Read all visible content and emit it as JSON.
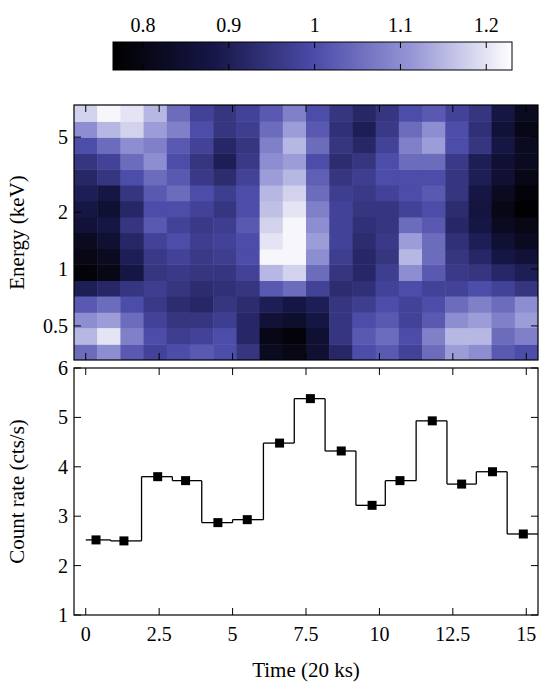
{
  "chart_data": [
    {
      "type": "heatmap",
      "y_label": "Energy (keV)",
      "log": "y",
      "tick_labels": "y",
      "xlim": [
        -0.4,
        15.4
      ],
      "xticks": [
        0,
        2.5,
        5,
        7.5,
        10,
        12.5,
        15
      ],
      "ylim": [
        0.33,
        7.4
      ],
      "yticks": [
        0.5,
        1,
        2,
        5
      ],
      "x_edges": [
        -0.4,
        0.39,
        1.18,
        1.97,
        2.76,
        3.55,
        4.34,
        5.13,
        5.92,
        6.71,
        7.5,
        8.29,
        9.08,
        9.87,
        10.66,
        11.45,
        12.24,
        13.03,
        13.82,
        14.61,
        15.4
      ],
      "y_edges": [
        0.33,
        0.4,
        0.49,
        0.59,
        0.72,
        0.87,
        1.06,
        1.28,
        1.56,
        1.89,
        2.3,
        2.79,
        3.38,
        4.11,
        4.99,
        6.06,
        7.4
      ],
      "cells": [
        [
          1.05,
          1.1,
          1.02,
          0.98,
          1.0,
          1.02,
          1.0,
          0.95,
          0.82,
          0.8,
          0.85,
          0.92,
          1.0,
          1.02,
          0.98,
          1.05,
          1.12,
          1.1,
          1.02,
          1.0
        ],
        [
          1.15,
          1.2,
          1.08,
          1.0,
          0.97,
          0.98,
          1.0,
          0.92,
          0.8,
          0.78,
          0.85,
          0.95,
          1.02,
          1.05,
          1.0,
          1.08,
          1.15,
          1.15,
          1.05,
          1.08
        ],
        [
          1.1,
          1.12,
          1.05,
          0.98,
          0.95,
          0.95,
          0.97,
          0.92,
          0.86,
          0.84,
          0.88,
          0.95,
          1.0,
          1.02,
          0.98,
          1.02,
          1.1,
          1.12,
          1.08,
          1.12
        ],
        [
          1.02,
          1.05,
          1.0,
          0.96,
          0.93,
          0.92,
          0.95,
          0.93,
          0.9,
          0.88,
          0.9,
          0.95,
          0.97,
          1.0,
          0.98,
          1.0,
          1.05,
          1.08,
          1.05,
          1.1
        ],
        [
          0.9,
          0.92,
          0.95,
          0.97,
          0.95,
          0.93,
          0.94,
          0.95,
          1.02,
          1.05,
          0.98,
          0.93,
          0.94,
          0.98,
          1.0,
          0.98,
          0.98,
          1.0,
          0.98,
          0.95
        ],
        [
          0.78,
          0.8,
          0.88,
          0.95,
          0.96,
          0.95,
          0.95,
          0.98,
          1.15,
          1.18,
          1.05,
          0.95,
          0.92,
          0.97,
          1.1,
          1.02,
          0.96,
          0.95,
          0.92,
          0.9
        ],
        [
          0.8,
          0.82,
          0.9,
          0.96,
          0.98,
          0.96,
          0.97,
          1.0,
          1.22,
          1.22,
          1.1,
          0.97,
          0.92,
          0.95,
          1.15,
          1.05,
          0.95,
          0.92,
          0.88,
          0.86
        ],
        [
          0.82,
          0.85,
          0.92,
          0.98,
          1.0,
          0.97,
          0.98,
          1.0,
          1.2,
          1.22,
          1.12,
          0.98,
          0.93,
          0.96,
          1.12,
          1.05,
          0.94,
          0.9,
          0.85,
          0.82
        ],
        [
          0.86,
          0.88,
          0.95,
          1.02,
          0.98,
          0.96,
          0.97,
          1.02,
          1.18,
          1.22,
          1.1,
          0.98,
          0.94,
          0.95,
          1.05,
          1.02,
          0.92,
          0.88,
          0.82,
          0.8
        ],
        [
          0.88,
          0.85,
          0.92,
          1.0,
          1.0,
          0.98,
          0.95,
          1.0,
          1.16,
          1.2,
          1.08,
          0.98,
          0.95,
          0.95,
          0.98,
          1.0,
          0.93,
          0.87,
          0.8,
          0.77
        ],
        [
          0.9,
          0.88,
          0.95,
          1.02,
          1.05,
          1.0,
          0.97,
          1.0,
          1.15,
          1.18,
          1.05,
          0.97,
          0.96,
          0.98,
          1.0,
          1.02,
          0.95,
          0.88,
          0.82,
          0.78
        ],
        [
          0.92,
          0.95,
          1.0,
          1.05,
          1.02,
          0.96,
          0.93,
          0.98,
          1.12,
          1.15,
          1.03,
          0.95,
          0.97,
          1.0,
          1.0,
          1.0,
          0.95,
          0.9,
          0.85,
          0.8
        ],
        [
          0.95,
          0.98,
          1.05,
          1.1,
          1.0,
          0.95,
          0.9,
          0.96,
          1.1,
          1.12,
          1.0,
          0.93,
          0.95,
          1.0,
          1.05,
          1.05,
          0.96,
          0.9,
          0.85,
          0.82
        ],
        [
          1.0,
          1.05,
          1.1,
          1.08,
          1.02,
          0.98,
          0.92,
          0.95,
          1.08,
          1.15,
          1.05,
          0.95,
          0.92,
          0.98,
          1.08,
          1.12,
          1.0,
          0.95,
          0.88,
          0.82
        ],
        [
          1.1,
          1.15,
          1.18,
          1.12,
          1.08,
          1.0,
          0.95,
          0.97,
          1.05,
          1.12,
          1.02,
          0.94,
          0.9,
          0.96,
          1.05,
          1.1,
          1.0,
          0.94,
          0.86,
          0.8
        ],
        [
          1.18,
          1.22,
          1.2,
          1.15,
          1.05,
          0.98,
          0.95,
          0.98,
          1.02,
          1.08,
          1.0,
          0.95,
          0.92,
          0.95,
          1.0,
          1.02,
          0.98,
          0.95,
          0.88,
          0.82
        ]
      ],
      "colorbar_range": [
        0.765,
        1.23
      ],
      "colorbar_ticks": [
        0.8,
        0.9,
        1,
        1.1,
        1.2
      ]
    },
    {
      "type": "step",
      "x_label": "Time (20 ks)",
      "y_label": "Count rate (cts/s)",
      "marker": "square",
      "color": "#000000",
      "xlim": [
        -0.4,
        15.4
      ],
      "xticks": [
        0,
        2.5,
        5,
        7.5,
        10,
        12.5,
        15
      ],
      "ylim": [
        1,
        6
      ],
      "yticks": [
        1,
        2,
        3,
        4,
        5,
        6
      ],
      "bins": [
        0,
        0.85,
        1.9,
        2.95,
        3.95,
        5.0,
        6.05,
        7.1,
        8.15,
        9.2,
        10.2,
        11.25,
        12.3,
        13.3,
        14.35,
        15.4
      ],
      "x": [
        0.35,
        1.3,
        2.45,
        3.4,
        4.5,
        5.5,
        6.6,
        7.65,
        8.7,
        9.75,
        10.7,
        11.8,
        12.8,
        13.85,
        14.9
      ],
      "values": [
        2.52,
        2.5,
        3.8,
        3.72,
        2.87,
        2.93,
        4.48,
        5.38,
        4.32,
        3.22,
        3.72,
        4.93,
        3.65,
        3.9,
        2.64
      ]
    }
  ]
}
